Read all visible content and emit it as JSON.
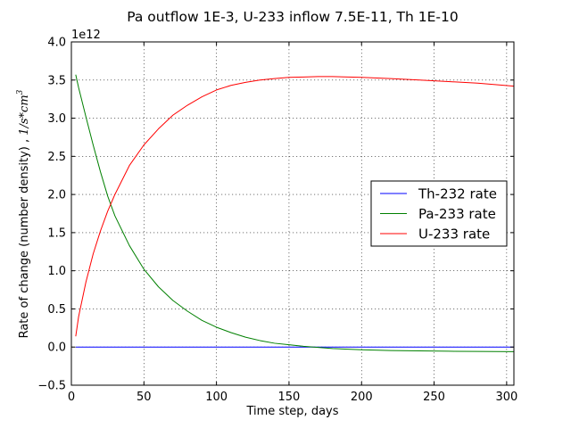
{
  "chart_data": {
    "type": "line",
    "title": "Pa outflow 1E-3, U-233 inflow 7.5E-11, Th 1E-10",
    "xlabel": "Time step, days",
    "ylabel": "Rate of change (number density) , ",
    "ylabel_math": "1/s*cm",
    "ylabel_math_sup": "3",
    "offset_text": "1e12",
    "xlim": [
      0,
      305
    ],
    "ylim": [
      -0.5,
      4.0
    ],
    "y_scale": 1000000000000.0,
    "x_ticks": [
      0,
      50,
      100,
      150,
      200,
      250,
      300
    ],
    "x_tick_labels": [
      "0",
      "50",
      "100",
      "150",
      "200",
      "250",
      "300"
    ],
    "y_ticks": [
      -0.5,
      0.0,
      0.5,
      1.0,
      1.5,
      2.0,
      2.5,
      3.0,
      3.5,
      4.0
    ],
    "y_tick_labels": [
      "−0.5",
      "0.0",
      "0.5",
      "1.0",
      "1.5",
      "2.0",
      "2.5",
      "3.0",
      "3.5",
      "4.0"
    ],
    "grid": true,
    "legend_position": "center-right",
    "series": [
      {
        "name": "Th-232 rate",
        "color": "#0000ff",
        "x": [
          3,
          305
        ],
        "y": [
          0.0,
          0.0
        ]
      },
      {
        "name": "Pa-233 rate",
        "color": "#008000",
        "x": [
          3,
          5,
          10,
          15,
          20,
          25,
          30,
          40,
          50,
          60,
          70,
          80,
          90,
          100,
          110,
          120,
          130,
          140,
          150,
          160,
          170,
          180,
          200,
          220,
          240,
          260,
          280,
          305
        ],
        "y": [
          3.57,
          3.4,
          3.02,
          2.65,
          2.3,
          1.98,
          1.72,
          1.33,
          1.02,
          0.79,
          0.61,
          0.47,
          0.35,
          0.26,
          0.19,
          0.13,
          0.085,
          0.05,
          0.03,
          0.01,
          -0.005,
          -0.02,
          -0.035,
          -0.045,
          -0.05,
          -0.055,
          -0.058,
          -0.06
        ]
      },
      {
        "name": "U-233 rate",
        "color": "#ff0000",
        "x": [
          3,
          5,
          10,
          15,
          20,
          25,
          30,
          40,
          50,
          60,
          70,
          80,
          90,
          100,
          110,
          120,
          130,
          140,
          150,
          160,
          170,
          180,
          200,
          220,
          240,
          260,
          280,
          305
        ],
        "y": [
          0.14,
          0.4,
          0.85,
          1.22,
          1.52,
          1.78,
          2.0,
          2.38,
          2.65,
          2.86,
          3.04,
          3.17,
          3.28,
          3.37,
          3.43,
          3.47,
          3.5,
          3.52,
          3.535,
          3.54,
          3.545,
          3.545,
          3.535,
          3.52,
          3.5,
          3.48,
          3.46,
          3.42
        ]
      }
    ]
  }
}
